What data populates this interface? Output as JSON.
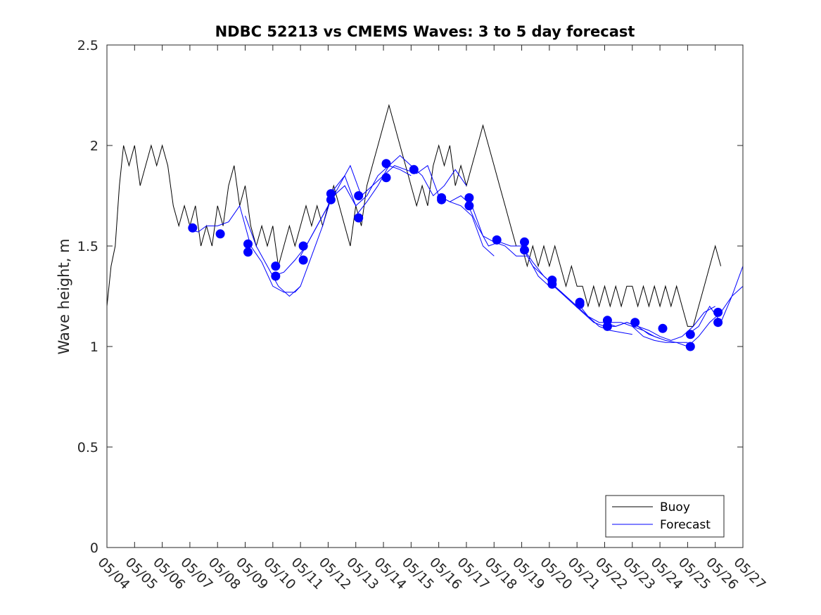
{
  "chart_data": {
    "type": "line",
    "title": "NDBC 52213 vs CMEMS Waves: 3 to 5 day forecast",
    "xlabel": "",
    "ylabel": "Wave height, m",
    "ylim": [
      0,
      2.5
    ],
    "yticks": [
      "0",
      "0.5",
      "1",
      "1.5",
      "2",
      "2.5"
    ],
    "xlim_day": [
      4,
      27
    ],
    "xticks": [
      "05/04",
      "05/05",
      "05/06",
      "05/07",
      "05/08",
      "05/09",
      "05/10",
      "05/11",
      "05/12",
      "05/13",
      "05/14",
      "05/15",
      "05/16",
      "05/17",
      "05/18",
      "05/19",
      "05/20",
      "05/21",
      "05/22",
      "05/23",
      "05/24",
      "05/25",
      "05/26",
      "05/27"
    ],
    "grid": false,
    "legend": {
      "placement": "bottom-right",
      "entries": [
        "Buoy",
        "Forecast"
      ]
    },
    "colors": {
      "buoy": "#000000",
      "forecast": "#0000ff",
      "axes": "#262626"
    },
    "buoy": {
      "name": "Buoy",
      "x": [
        4.0,
        4.15,
        4.3,
        4.45,
        4.6,
        4.8,
        5.0,
        5.2,
        5.4,
        5.6,
        5.8,
        6.0,
        6.2,
        6.4,
        6.6,
        6.8,
        7.0,
        7.2,
        7.4,
        7.6,
        7.8,
        8.0,
        8.2,
        8.4,
        8.6,
        8.8,
        9.0,
        9.2,
        9.4,
        9.6,
        9.8,
        10.0,
        10.2,
        10.4,
        10.6,
        10.8,
        11.0,
        11.2,
        11.4,
        11.6,
        11.8,
        12.0,
        12.2,
        12.4,
        12.6,
        12.8,
        13.0,
        13.2,
        13.4,
        13.6,
        13.8,
        14.0,
        14.2,
        14.4,
        14.6,
        14.8,
        15.0,
        15.2,
        15.4,
        15.6,
        15.8,
        16.0,
        16.2,
        16.4,
        16.6,
        16.8,
        17.0,
        17.2,
        17.4,
        17.6,
        17.8,
        18.0,
        18.2,
        18.4,
        18.6,
        18.8,
        19.0,
        19.2,
        19.4,
        19.6,
        19.8,
        20.0,
        20.2,
        20.4,
        20.6,
        20.8,
        21.0,
        21.2,
        21.4,
        21.6,
        21.8,
        22.0,
        22.2,
        22.4,
        22.6,
        22.8,
        23.0,
        23.2,
        23.4,
        23.6,
        23.8,
        24.0,
        24.2,
        24.4,
        24.6,
        24.8,
        25.0,
        25.2,
        25.4,
        25.6,
        25.8,
        26.0,
        26.2
      ],
      "y": [
        1.2,
        1.4,
        1.5,
        1.8,
        2.0,
        1.9,
        2.0,
        1.8,
        1.9,
        2.0,
        1.9,
        2.0,
        1.9,
        1.7,
        1.6,
        1.7,
        1.6,
        1.7,
        1.5,
        1.6,
        1.5,
        1.7,
        1.6,
        1.8,
        1.9,
        1.7,
        1.8,
        1.6,
        1.5,
        1.6,
        1.5,
        1.6,
        1.4,
        1.5,
        1.6,
        1.5,
        1.6,
        1.7,
        1.6,
        1.7,
        1.6,
        1.7,
        1.8,
        1.7,
        1.6,
        1.5,
        1.7,
        1.6,
        1.8,
        1.9,
        2.0,
        2.1,
        2.2,
        2.1,
        2.0,
        1.9,
        1.8,
        1.7,
        1.8,
        1.7,
        1.9,
        2.0,
        1.9,
        2.0,
        1.8,
        1.9,
        1.8,
        1.9,
        2.0,
        2.1,
        2.0,
        1.9,
        1.8,
        1.7,
        1.6,
        1.5,
        1.5,
        1.4,
        1.5,
        1.4,
        1.5,
        1.4,
        1.5,
        1.4,
        1.3,
        1.4,
        1.3,
        1.3,
        1.2,
        1.3,
        1.2,
        1.3,
        1.2,
        1.3,
        1.2,
        1.3,
        1.3,
        1.2,
        1.3,
        1.2,
        1.3,
        1.2,
        1.3,
        1.2,
        1.3,
        1.2,
        1.1,
        1.1,
        1.2,
        1.3,
        1.4,
        1.5,
        1.4
      ]
    },
    "forecast": {
      "name": "Forecast",
      "runs": [
        {
          "x": [
            7.0,
            7.3,
            7.6,
            8.0,
            8.4,
            8.8,
            9.2,
            9.6,
            10.0,
            10.4,
            10.8,
            11.0
          ],
          "y": [
            1.58,
            1.57,
            1.6,
            1.6,
            1.62,
            1.7,
            1.5,
            1.42,
            1.3,
            1.27,
            1.27,
            1.3
          ]
        },
        {
          "x": [
            9.0,
            9.4,
            9.8,
            10.2,
            10.6,
            11.0,
            11.4,
            11.8,
            12.2,
            12.6,
            13.0
          ],
          "y": [
            1.65,
            1.5,
            1.4,
            1.3,
            1.25,
            1.3,
            1.45,
            1.6,
            1.78,
            1.85,
            1.7
          ]
        },
        {
          "x": [
            10.0,
            10.4,
            10.8,
            11.2,
            11.6,
            12.0,
            12.4,
            12.8,
            13.2,
            13.6,
            14.0
          ],
          "y": [
            1.35,
            1.37,
            1.43,
            1.5,
            1.6,
            1.7,
            1.8,
            1.9,
            1.75,
            1.8,
            1.85
          ]
        },
        {
          "x": [
            11.0,
            11.4,
            11.8,
            12.2,
            12.6,
            13.0,
            13.4,
            13.8,
            14.2,
            14.6,
            15.0
          ],
          "y": [
            1.45,
            1.55,
            1.65,
            1.75,
            1.8,
            1.7,
            1.75,
            1.85,
            1.9,
            1.88,
            1.85
          ]
        },
        {
          "x": [
            13.0,
            13.4,
            13.8,
            14.2,
            14.6,
            15.0,
            15.4,
            15.8,
            16.2,
            16.6,
            17.0
          ],
          "y": [
            1.65,
            1.72,
            1.8,
            1.9,
            1.95,
            1.9,
            1.85,
            1.75,
            1.8,
            1.88,
            1.8
          ]
        },
        {
          "x": [
            14.0,
            14.4,
            14.8,
            15.2,
            15.6,
            16.0,
            16.4,
            16.8,
            17.2,
            17.6,
            18.0
          ],
          "y": [
            1.85,
            1.9,
            1.88,
            1.86,
            1.9,
            1.75,
            1.72,
            1.7,
            1.65,
            1.5,
            1.45
          ]
        },
        {
          "x": [
            16.0,
            16.4,
            16.8,
            17.2,
            17.6,
            18.0,
            18.4,
            18.8,
            19.2,
            19.6,
            20.0
          ],
          "y": [
            1.75,
            1.72,
            1.75,
            1.7,
            1.55,
            1.52,
            1.5,
            1.45,
            1.45,
            1.35,
            1.3
          ]
        },
        {
          "x": [
            17.0,
            17.4,
            17.8,
            18.2,
            18.6,
            19.0,
            19.4,
            19.8,
            20.2,
            20.6,
            21.0
          ],
          "y": [
            1.72,
            1.6,
            1.5,
            1.52,
            1.5,
            1.5,
            1.4,
            1.35,
            1.3,
            1.25,
            1.2
          ]
        },
        {
          "x": [
            19.0,
            19.4,
            19.8,
            20.2,
            20.6,
            21.0,
            21.4,
            21.8,
            22.2,
            22.6,
            23.0
          ],
          "y": [
            1.5,
            1.42,
            1.35,
            1.3,
            1.25,
            1.2,
            1.15,
            1.1,
            1.08,
            1.07,
            1.06
          ]
        },
        {
          "x": [
            20.0,
            20.4,
            20.8,
            21.2,
            21.6,
            22.0,
            22.4,
            22.8,
            23.2,
            23.6,
            24.0
          ],
          "y": [
            1.32,
            1.27,
            1.22,
            1.17,
            1.12,
            1.1,
            1.1,
            1.12,
            1.1,
            1.06,
            1.04
          ]
        },
        {
          "x": [
            21.0,
            21.4,
            21.8,
            22.2,
            22.6,
            23.0,
            23.4,
            23.8,
            24.2,
            24.6,
            25.0
          ],
          "y": [
            1.22,
            1.15,
            1.12,
            1.12,
            1.12,
            1.1,
            1.05,
            1.03,
            1.02,
            1.02,
            1.02
          ]
        },
        {
          "x": [
            22.0,
            22.4,
            22.8,
            23.2,
            23.6,
            24.0,
            24.4,
            24.8,
            25.2,
            25.6,
            26.0
          ],
          "y": [
            1.12,
            1.1,
            1.12,
            1.1,
            1.08,
            1.05,
            1.03,
            1.05,
            1.1,
            1.17,
            1.2
          ]
        },
        {
          "x": [
            23.0,
            23.4,
            23.8,
            24.2,
            24.6,
            25.0,
            25.4,
            25.8,
            26.2,
            26.6,
            27.0
          ],
          "y": [
            1.1,
            1.08,
            1.05,
            1.03,
            1.02,
            1.0,
            1.05,
            1.12,
            1.17,
            1.25,
            1.4
          ]
        },
        {
          "x": [
            25.0,
            25.4,
            25.8,
            26.2,
            26.6,
            27.0
          ],
          "y": [
            1.06,
            1.1,
            1.2,
            1.12,
            1.25,
            1.3
          ]
        }
      ],
      "markers": {
        "x": [
          7.1,
          8.1,
          9.1,
          9.1,
          10.1,
          10.1,
          11.1,
          11.1,
          12.1,
          12.1,
          13.1,
          13.1,
          14.1,
          14.1,
          15.1,
          16.1,
          16.1,
          17.1,
          17.1,
          18.1,
          19.1,
          19.1,
          20.1,
          20.1,
          21.1,
          21.1,
          22.1,
          22.1,
          23.1,
          24.1,
          25.1,
          25.1,
          26.1,
          26.1
        ],
        "y": [
          1.59,
          1.56,
          1.51,
          1.47,
          1.4,
          1.35,
          1.5,
          1.43,
          1.76,
          1.73,
          1.75,
          1.64,
          1.91,
          1.84,
          1.88,
          1.74,
          1.73,
          1.74,
          1.7,
          1.53,
          1.52,
          1.48,
          1.33,
          1.31,
          1.22,
          1.21,
          1.13,
          1.1,
          1.12,
          1.09,
          1.06,
          1.0,
          1.17,
          1.12
        ]
      }
    }
  }
}
